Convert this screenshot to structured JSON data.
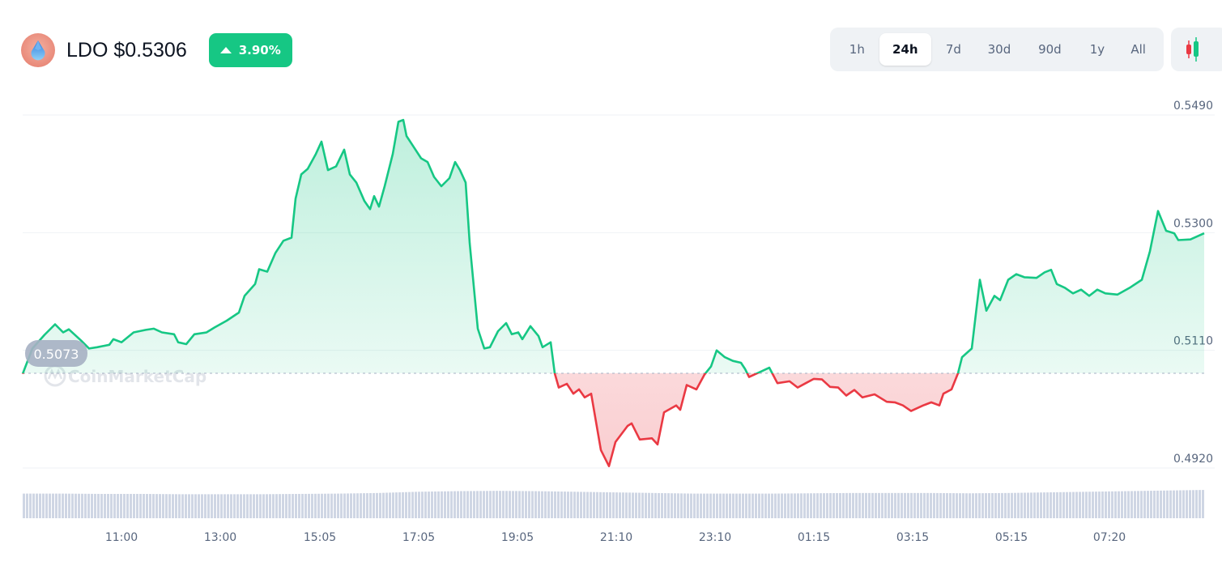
{
  "header": {
    "coin_icon": "lido-droplet-icon",
    "title": "LDO $0.5306",
    "change": "3.90%",
    "change_direction": "up"
  },
  "ranges": {
    "items": [
      "1h",
      "24h",
      "7d",
      "30d",
      "90d",
      "1y",
      "All"
    ],
    "active": "24h",
    "chart_type_icon": "candlestick-icon"
  },
  "colors": {
    "up": "#16c784",
    "down": "#ea3943",
    "volume": "#cfd6e4",
    "baseline_label_bg": "#a6b0c3"
  },
  "watermark": "CoinMarketCap",
  "chart_data": {
    "type": "line",
    "baseline": 0.5073,
    "baseline_label": "0.5073",
    "ylim": [
      0.492,
      0.549
    ],
    "y_ticks": [
      "0.5490",
      "0.5300",
      "0.5110",
      "0.4920"
    ],
    "x_ticks": [
      "11:00",
      "13:00",
      "15:05",
      "17:05",
      "19:05",
      "21:10",
      "23:10",
      "01:15",
      "03:15",
      "05:15",
      "07:20"
    ],
    "grid": "horizontal",
    "points": [
      [
        "08:58",
        0.5072
      ],
      [
        "09:10",
        0.5113
      ],
      [
        "09:25",
        0.5135
      ],
      [
        "09:38",
        0.5152
      ],
      [
        "09:48",
        0.5139
      ],
      [
        "09:55",
        0.5144
      ],
      [
        "10:10",
        0.5126
      ],
      [
        "10:20",
        0.5113
      ],
      [
        "10:30",
        0.5115
      ],
      [
        "10:45",
        0.5119
      ],
      [
        "10:50",
        0.5128
      ],
      [
        "11:00",
        0.5123
      ],
      [
        "11:15",
        0.5139
      ],
      [
        "11:30",
        0.5143
      ],
      [
        "11:40",
        0.5145
      ],
      [
        "11:50",
        0.5139
      ],
      [
        "12:05",
        0.5136
      ],
      [
        "12:10",
        0.5123
      ],
      [
        "12:20",
        0.512
      ],
      [
        "12:30",
        0.5136
      ],
      [
        "12:45",
        0.5139
      ],
      [
        "12:55",
        0.5147
      ],
      [
        "13:10",
        0.5158
      ],
      [
        "13:25",
        0.5171
      ],
      [
        "13:32",
        0.5198
      ],
      [
        "13:45",
        0.5217
      ],
      [
        "13:50",
        0.5241
      ],
      [
        "14:00",
        0.5237
      ],
      [
        "14:10",
        0.5267
      ],
      [
        "14:20",
        0.5287
      ],
      [
        "14:30",
        0.5292
      ],
      [
        "14:35",
        0.5355
      ],
      [
        "14:42",
        0.5394
      ],
      [
        "14:50",
        0.5403
      ],
      [
        "15:00",
        0.5427
      ],
      [
        "15:07",
        0.5447
      ],
      [
        "15:15",
        0.5401
      ],
      [
        "15:25",
        0.5407
      ],
      [
        "15:35",
        0.5434
      ],
      [
        "15:42",
        0.5394
      ],
      [
        "15:50",
        0.5381
      ],
      [
        "16:00",
        0.5351
      ],
      [
        "16:07",
        0.5338
      ],
      [
        "16:12",
        0.5359
      ],
      [
        "16:18",
        0.5342
      ],
      [
        "16:25",
        0.5375
      ],
      [
        "16:35",
        0.5427
      ],
      [
        "16:42",
        0.5479
      ],
      [
        "16:48",
        0.5482
      ],
      [
        "16:52",
        0.5456
      ],
      [
        "17:00",
        0.544
      ],
      [
        "17:10",
        0.542
      ],
      [
        "17:18",
        0.5414
      ],
      [
        "17:26",
        0.539
      ],
      [
        "17:35",
        0.5375
      ],
      [
        "17:45",
        0.5388
      ],
      [
        "17:52",
        0.5414
      ],
      [
        "17:58",
        0.5401
      ],
      [
        "18:05",
        0.5381
      ],
      [
        "18:10",
        0.5283
      ],
      [
        "18:20",
        0.5145
      ],
      [
        "18:28",
        0.5113
      ],
      [
        "18:35",
        0.5115
      ],
      [
        "18:45",
        0.5141
      ],
      [
        "18:55",
        0.5154
      ],
      [
        "19:02",
        0.5136
      ],
      [
        "19:10",
        0.5139
      ],
      [
        "19:15",
        0.5128
      ],
      [
        "19:25",
        0.5149
      ],
      [
        "19:35",
        0.5133
      ],
      [
        "19:40",
        0.5115
      ],
      [
        "19:50",
        0.5123
      ],
      [
        "19:55",
        0.5073
      ],
      [
        "20:00",
        0.505
      ],
      [
        "20:10",
        0.5056
      ],
      [
        "20:18",
        0.504
      ],
      [
        "20:25",
        0.5047
      ],
      [
        "20:32",
        0.5034
      ],
      [
        "20:40",
        0.504
      ],
      [
        "20:52",
        0.4949
      ],
      [
        "21:02",
        0.4923
      ],
      [
        "21:10",
        0.4962
      ],
      [
        "21:25",
        0.4988
      ],
      [
        "21:30",
        0.4992
      ],
      [
        "21:40",
        0.4966
      ],
      [
        "21:55",
        0.4968
      ],
      [
        "22:02",
        0.4958
      ],
      [
        "22:10",
        0.501
      ],
      [
        "22:25",
        0.5021
      ],
      [
        "22:30",
        0.5014
      ],
      [
        "22:38",
        0.5054
      ],
      [
        "22:50",
        0.5047
      ],
      [
        "23:00",
        0.5071
      ],
      [
        "23:08",
        0.5084
      ],
      [
        "23:15",
        0.511
      ],
      [
        "23:25",
        0.5099
      ],
      [
        "23:35",
        0.5093
      ],
      [
        "23:45",
        0.509
      ],
      [
        "23:50",
        0.508
      ],
      [
        "23:55",
        0.5067
      ],
      [
        "00:05",
        0.5073
      ],
      [
        "00:20",
        0.5082
      ],
      [
        "00:30",
        0.5057
      ],
      [
        "00:45",
        0.506
      ],
      [
        "00:55",
        0.505
      ],
      [
        "01:05",
        0.5057
      ],
      [
        "01:15",
        0.5064
      ],
      [
        "01:25",
        0.5063
      ],
      [
        "01:35",
        0.5051
      ],
      [
        "01:45",
        0.505
      ],
      [
        "01:55",
        0.5037
      ],
      [
        "02:05",
        0.5046
      ],
      [
        "02:15",
        0.5034
      ],
      [
        "02:30",
        0.5039
      ],
      [
        "02:45",
        0.5027
      ],
      [
        "02:55",
        0.5026
      ],
      [
        "03:05",
        0.5021
      ],
      [
        "03:15",
        0.5012
      ],
      [
        "03:30",
        0.5021
      ],
      [
        "03:40",
        0.5026
      ],
      [
        "03:50",
        0.5021
      ],
      [
        "03:55",
        0.504
      ],
      [
        "04:05",
        0.5047
      ],
      [
        "04:13",
        0.5073
      ],
      [
        "04:18",
        0.5099
      ],
      [
        "04:30",
        0.5113
      ],
      [
        "04:40",
        0.5224
      ],
      [
        "04:48",
        0.5174
      ],
      [
        "04:58",
        0.5198
      ],
      [
        "05:05",
        0.5191
      ],
      [
        "05:15",
        0.5224
      ],
      [
        "05:25",
        0.5233
      ],
      [
        "05:35",
        0.5228
      ],
      [
        "05:50",
        0.5227
      ],
      [
        "06:00",
        0.5236
      ],
      [
        "06:08",
        0.524
      ],
      [
        "06:15",
        0.5217
      ],
      [
        "06:25",
        0.5211
      ],
      [
        "06:35",
        0.5202
      ],
      [
        "06:45",
        0.5208
      ],
      [
        "06:55",
        0.5198
      ],
      [
        "07:05",
        0.5208
      ],
      [
        "07:15",
        0.5202
      ],
      [
        "07:30",
        0.52
      ],
      [
        "07:45",
        0.5211
      ],
      [
        "08:00",
        0.5224
      ],
      [
        "08:10",
        0.527
      ],
      [
        "08:20",
        0.5335
      ],
      [
        "08:30",
        0.5303
      ],
      [
        "08:40",
        0.5299
      ],
      [
        "08:45",
        0.5288
      ],
      [
        "09:00",
        0.5289
      ],
      [
        "09:17",
        0.5299
      ]
    ],
    "volume_relative": [
      0.8,
      0.8,
      0.79,
      0.79,
      0.78,
      0.78,
      0.78,
      0.79,
      0.8,
      0.82,
      0.86,
      0.88,
      0.89,
      0.88,
      0.86,
      0.84,
      0.82,
      0.8,
      0.8,
      0.8,
      0.81,
      0.82,
      0.82,
      0.82,
      0.81,
      0.82,
      0.84,
      0.86,
      0.88,
      0.9,
      0.92
    ]
  }
}
